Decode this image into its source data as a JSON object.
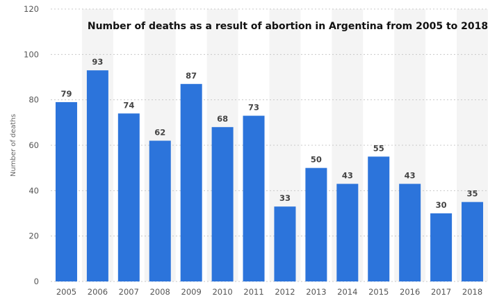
{
  "chart_data": {
    "type": "bar",
    "title": "Number of deaths as a result of abortion in Argentina from 2005 to 2018",
    "xlabel": "",
    "ylabel": "Number of deaths",
    "categories": [
      "2005",
      "2006",
      "2007",
      "2008",
      "2009",
      "2010",
      "2011",
      "2012",
      "2013",
      "2014",
      "2015",
      "2016",
      "2017",
      "2018"
    ],
    "values": [
      79,
      93,
      74,
      62,
      87,
      68,
      73,
      33,
      50,
      43,
      55,
      43,
      30,
      35
    ],
    "ylim": [
      0,
      120
    ],
    "yticks": [
      0,
      20,
      40,
      60,
      80,
      100,
      120
    ],
    "grid": true,
    "bar_color": "#2c74db",
    "data_labels": true
  }
}
